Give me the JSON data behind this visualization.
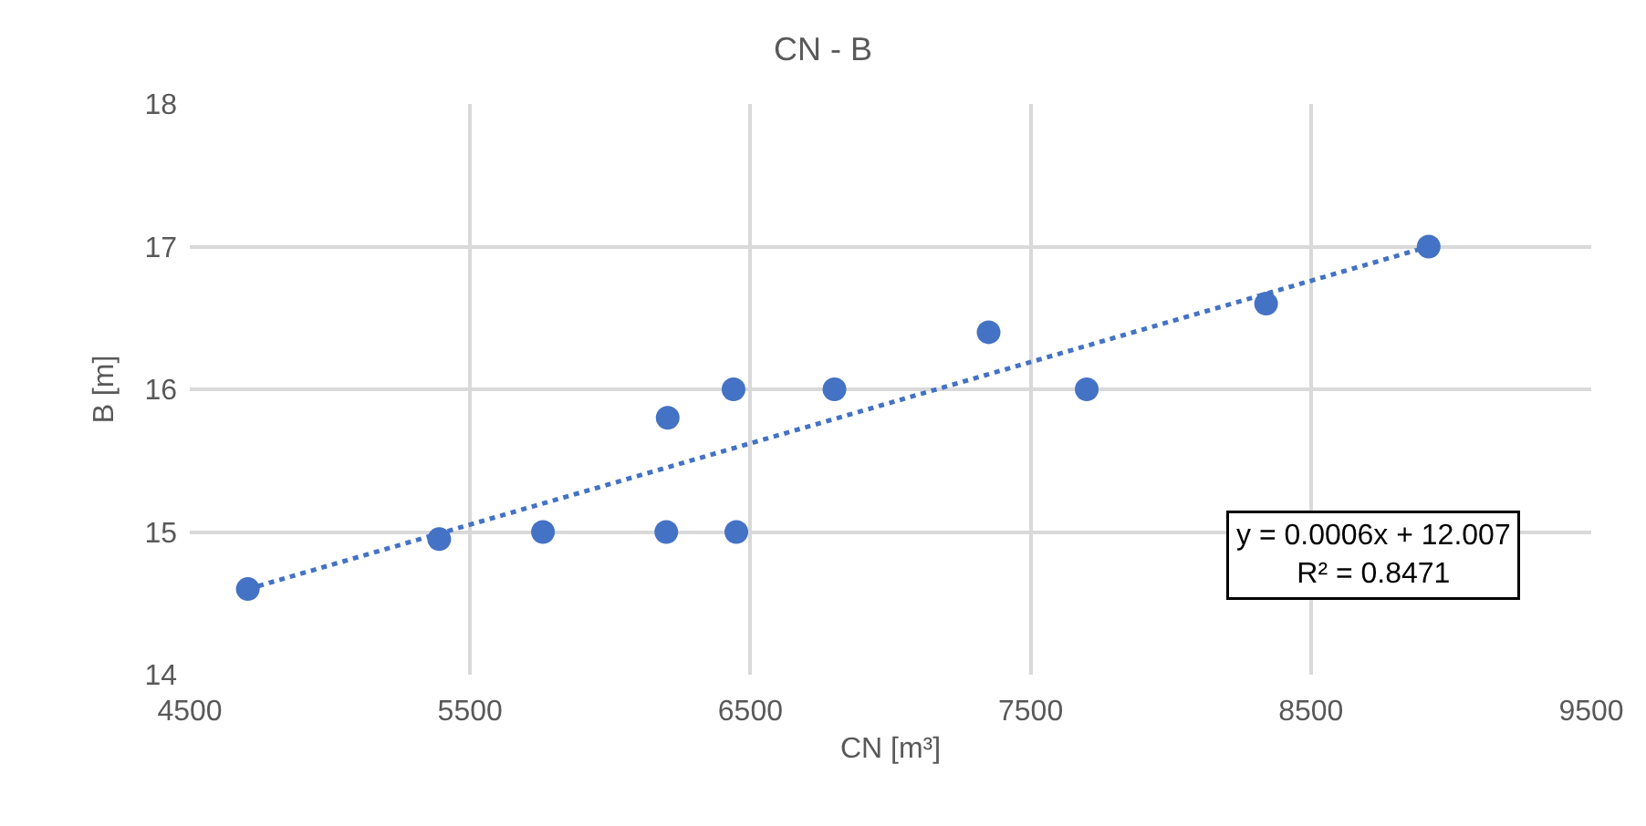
{
  "chart_data": {
    "type": "scatter",
    "title": "CN - B",
    "xlabel": "CN [m³]",
    "ylabel": "B [m]",
    "x": [
      4707,
      5390,
      5760,
      6200,
      6205,
      6440,
      6450,
      6800,
      7350,
      7700,
      8340,
      8920
    ],
    "series": [
      {
        "color": "#4472c4",
        "values": [
          14.6,
          14.95,
          15.0,
          15.0,
          15.8,
          16.0,
          15.0,
          16.0,
          16.4,
          16.0,
          16.6,
          17.0
        ],
        "marker": "circle"
      },
      {
        "type": "line",
        "color": "#4472c4",
        "x": [
          4707,
          8920
        ],
        "values": [
          14.6,
          17.0
        ],
        "line_style": "dotted",
        "marker": "none"
      }
    ],
    "annotations": [
      "y = 0.0006x + 12.007\nR² = 0.8471"
    ],
    "xlim": [
      4500,
      9500
    ],
    "xticks": [
      4500,
      5500,
      6500,
      7500,
      8500,
      9500
    ],
    "ylim": [
      14,
      18
    ],
    "yticks": [
      14,
      15,
      16,
      17,
      18
    ],
    "grid": true
  }
}
